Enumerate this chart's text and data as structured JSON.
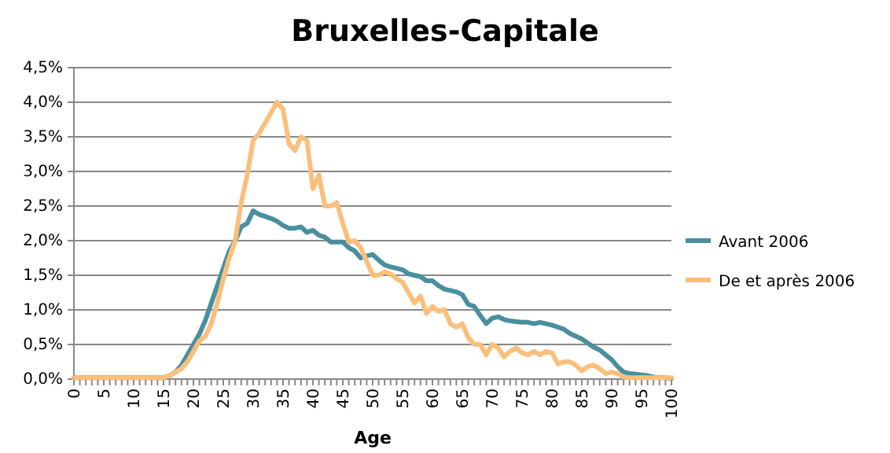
{
  "chart_data": {
    "type": "line",
    "title": "Bruxelles-Capitale",
    "xlabel": "Age",
    "categories": [
      "0",
      null,
      null,
      null,
      null,
      "5",
      null,
      null,
      null,
      null,
      "10",
      null,
      null,
      null,
      null,
      "15",
      null,
      null,
      null,
      null,
      "20",
      null,
      null,
      null,
      null,
      "25",
      null,
      null,
      null,
      null,
      "30",
      null,
      null,
      null,
      null,
      "35",
      null,
      null,
      null,
      null,
      "40",
      null,
      null,
      null,
      null,
      "45",
      null,
      null,
      null,
      null,
      "50",
      null,
      null,
      null,
      null,
      "55",
      null,
      null,
      null,
      null,
      "60",
      null,
      null,
      null,
      null,
      "65",
      null,
      null,
      null,
      null,
      "70",
      null,
      null,
      null,
      null,
      "75",
      null,
      null,
      null,
      null,
      "80",
      null,
      null,
      null,
      null,
      "85",
      null,
      null,
      null,
      null,
      "90",
      null,
      null,
      null,
      null,
      "95",
      null,
      null,
      null,
      null,
      "100"
    ],
    "ylim": [
      0,
      4.5
    ],
    "yticks": [
      {
        "value": 0,
        "label": "0,0%"
      },
      {
        "value": 0.5,
        "label": "0,5%"
      },
      {
        "value": 1,
        "label": "1,0%"
      },
      {
        "value": 1.5,
        "label": "1,5%"
      },
      {
        "value": 2,
        "label": "2,0%"
      },
      {
        "value": 2.5,
        "label": "2,5%"
      },
      {
        "value": 3,
        "label": "3,0%"
      },
      {
        "value": 3.5,
        "label": "3,5%"
      },
      {
        "value": 4,
        "label": "4,0%"
      },
      {
        "value": 4.5,
        "label": "4,5%"
      }
    ],
    "grid": "y",
    "legend": "right",
    "series": [
      {
        "name": "Avant 2006",
        "color": "#4a8fa0",
        "values": [
          0.02,
          0.02,
          0.02,
          0.02,
          0.02,
          0.02,
          0.02,
          0.02,
          0.02,
          0.02,
          0.02,
          0.02,
          0.02,
          0.02,
          0.02,
          0.02,
          0.05,
          0.1,
          0.2,
          0.35,
          0.5,
          0.65,
          0.85,
          1.1,
          1.35,
          1.6,
          1.85,
          2.0,
          2.2,
          2.25,
          2.43,
          2.38,
          2.35,
          2.32,
          2.28,
          2.22,
          2.18,
          2.18,
          2.2,
          2.12,
          2.15,
          2.08,
          2.05,
          1.98,
          1.98,
          1.98,
          1.9,
          1.85,
          1.75,
          1.78,
          1.8,
          1.72,
          1.65,
          1.62,
          1.6,
          1.58,
          1.52,
          1.5,
          1.48,
          1.42,
          1.42,
          1.35,
          1.3,
          1.28,
          1.26,
          1.22,
          1.08,
          1.05,
          0.92,
          0.8,
          0.88,
          0.9,
          0.86,
          0.84,
          0.83,
          0.82,
          0.82,
          0.8,
          0.82,
          0.8,
          0.78,
          0.75,
          0.72,
          0.66,
          0.62,
          0.58,
          0.52,
          0.46,
          0.42,
          0.35,
          0.28,
          0.18,
          0.1,
          0.08,
          0.07,
          0.06,
          0.05,
          0.03,
          0.02,
          0.02,
          0.01
        ]
      },
      {
        "name": "De et après 2006",
        "color": "#fbbf7c",
        "values": [
          0.02,
          0.02,
          0.02,
          0.02,
          0.02,
          0.02,
          0.02,
          0.02,
          0.02,
          0.02,
          0.02,
          0.02,
          0.02,
          0.02,
          0.02,
          0.02,
          0.05,
          0.1,
          0.15,
          0.25,
          0.4,
          0.55,
          0.62,
          0.8,
          1.1,
          1.45,
          1.75,
          2.0,
          2.55,
          2.95,
          3.45,
          3.55,
          3.7,
          3.85,
          4.0,
          3.9,
          3.4,
          3.3,
          3.5,
          3.45,
          2.75,
          2.95,
          2.5,
          2.5,
          2.55,
          2.25,
          1.98,
          2.0,
          1.9,
          1.7,
          1.5,
          1.5,
          1.55,
          1.52,
          1.45,
          1.4,
          1.25,
          1.1,
          1.2,
          0.95,
          1.05,
          0.98,
          1.0,
          0.8,
          0.75,
          0.8,
          0.6,
          0.5,
          0.5,
          0.35,
          0.5,
          0.45,
          0.32,
          0.4,
          0.45,
          0.38,
          0.35,
          0.4,
          0.35,
          0.4,
          0.38,
          0.22,
          0.25,
          0.25,
          0.2,
          0.12,
          0.18,
          0.2,
          0.15,
          0.08,
          0.1,
          0.08,
          0.03,
          0.02,
          0.02,
          0.02,
          0.02,
          0.02,
          0.02,
          0.02,
          0.02
        ]
      }
    ]
  }
}
